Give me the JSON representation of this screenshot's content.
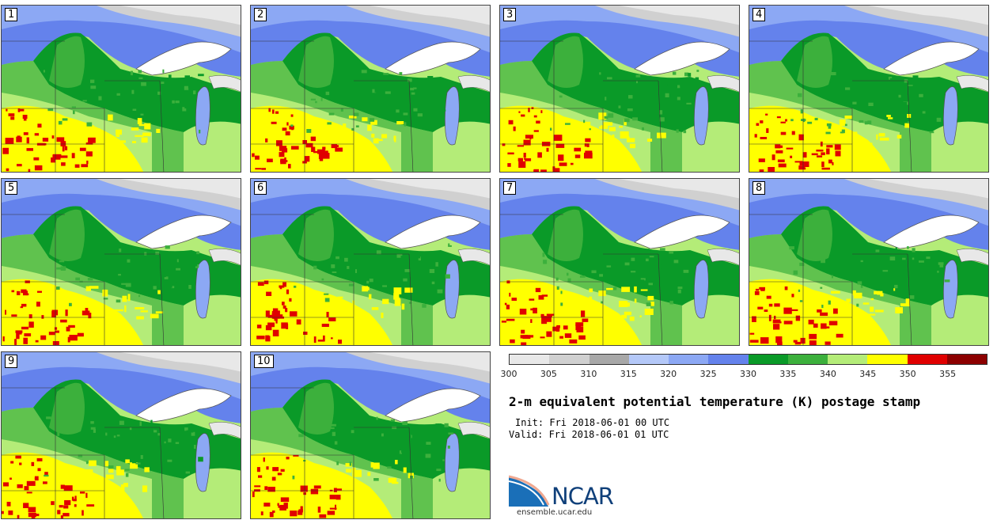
{
  "panels": [
    {
      "label": "1"
    },
    {
      "label": "2"
    },
    {
      "label": "3"
    },
    {
      "label": "4"
    },
    {
      "label": "5"
    },
    {
      "label": "6"
    },
    {
      "label": "7"
    },
    {
      "label": "8"
    },
    {
      "label": "9"
    },
    {
      "label": "10"
    }
  ],
  "colorbar": {
    "colors": [
      "#e8e8e8",
      "#d0d0d0",
      "#a8a8a8",
      "#b4c8f8",
      "#8ca8f4",
      "#6482ec",
      "#0a9a28",
      "#3cb03c",
      "#b4ec78",
      "#ffff00",
      "#e00000",
      "#8c0000"
    ],
    "labels": [
      "300",
      "305",
      "310",
      "315",
      "320",
      "325",
      "330",
      "335",
      "340",
      "345",
      "350",
      "355"
    ]
  },
  "title": "2-m equivalent potential temperature (K) postage stamp",
  "init": "Init: Fri 2018-06-01 00 UTC",
  "valid": "Valid: Fri 2018-06-01 01 UTC",
  "logo": {
    "text": "NCAR",
    "url": "ensemble.ucar.edu"
  }
}
